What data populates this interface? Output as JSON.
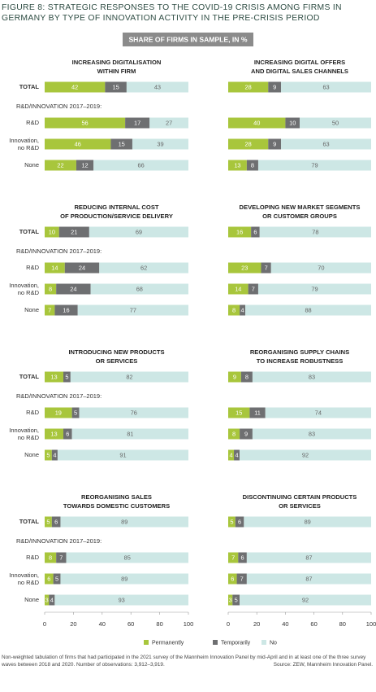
{
  "title": [
    "FIGURE 8: STRATEGIC RESPONSES TO THE COVID-19 CRISIS AMONG FIRMS IN",
    "GERMANY BY TYPE OF INNOVATION ACTIVITY IN THE PRE-CRISIS PERIOD"
  ],
  "subtitle": "SHARE OF FIRMS IN SAMPLE, IN %",
  "categories": [
    "TOTAL",
    "R&D",
    "Innovation, no R&D",
    "None"
  ],
  "group_label": "R&D/INNOVATION 2017–2019:",
  "legend": [
    {
      "name": "Permanently",
      "color": "#a8c63c"
    },
    {
      "name": "Temporarily",
      "color": "#6e6f71"
    },
    {
      "name": "No",
      "color": "#cde7e5"
    }
  ],
  "xlim": [
    0,
    100
  ],
  "xticks": [
    0,
    20,
    40,
    60,
    80,
    100
  ],
  "footnote": "Non-weighted tabulation of firms that had participated in the 2021 survey of the Mannheim Innovation Panel by mid-April and in at least one of the three survey waves between 2018 and 2020. Number of observations: 3,912–3,919.",
  "source": "Source: ZEW, Mannheim Innovation Panel.",
  "chart_data": [
    {
      "type": "bar",
      "title": [
        "INCREASING DIGITALISATION",
        "WITHIN FIRM"
      ],
      "series": [
        {
          "values": [
            42,
            56,
            46,
            22
          ]
        },
        {
          "values": [
            15,
            17,
            15,
            12
          ]
        },
        {
          "values": [
            43,
            27,
            39,
            66
          ]
        }
      ]
    },
    {
      "type": "bar",
      "title": [
        "INCREASING DIGITAL OFFERS",
        "AND DIGITAL SALES CHANNELS"
      ],
      "series": [
        {
          "values": [
            28,
            40,
            28,
            13
          ]
        },
        {
          "values": [
            9,
            10,
            9,
            8
          ]
        },
        {
          "values": [
            63,
            50,
            63,
            79
          ]
        }
      ]
    },
    {
      "type": "bar",
      "title": [
        "REDUCING INTERNAL COST",
        "OF PRODUCTION/SERVICE DELIVERY"
      ],
      "series": [
        {
          "values": [
            10,
            14,
            8,
            7
          ]
        },
        {
          "values": [
            21,
            24,
            24,
            16
          ]
        },
        {
          "values": [
            69,
            62,
            68,
            77
          ]
        }
      ]
    },
    {
      "type": "bar",
      "title": [
        "DEVELOPING NEW MARKET SEGMENTS",
        "OR CUSTOMER GROUPS"
      ],
      "series": [
        {
          "values": [
            16,
            23,
            14,
            8
          ]
        },
        {
          "values": [
            6,
            7,
            7,
            4
          ]
        },
        {
          "values": [
            78,
            70,
            79,
            88
          ]
        }
      ]
    },
    {
      "type": "bar",
      "title": [
        "INTRODUCING NEW PRODUCTS",
        "OR SERVICES"
      ],
      "series": [
        {
          "values": [
            13,
            19,
            13,
            5
          ]
        },
        {
          "values": [
            5,
            5,
            6,
            4
          ]
        },
        {
          "values": [
            82,
            76,
            81,
            91
          ]
        }
      ]
    },
    {
      "type": "bar",
      "title": [
        "REORGANISING SUPPLY CHAINS",
        "TO INCREASE ROBUSTNESS"
      ],
      "series": [
        {
          "values": [
            9,
            15,
            8,
            4
          ]
        },
        {
          "values": [
            8,
            11,
            9,
            4
          ]
        },
        {
          "values": [
            83,
            74,
            83,
            92
          ]
        }
      ]
    },
    {
      "type": "bar",
      "title": [
        "REORGANISING SALES",
        "TOWARDS DOMESTIC CUSTOMERS"
      ],
      "series": [
        {
          "values": [
            5,
            8,
            6,
            3
          ]
        },
        {
          "values": [
            6,
            7,
            5,
            4
          ]
        },
        {
          "values": [
            89,
            85,
            89,
            93
          ]
        }
      ]
    },
    {
      "type": "bar",
      "title": [
        "DISCONTINUING CERTAIN PRODUCTS",
        "OR SERVICES"
      ],
      "series": [
        {
          "values": [
            5,
            7,
            6,
            3
          ]
        },
        {
          "values": [
            6,
            6,
            7,
            5
          ]
        },
        {
          "values": [
            89,
            87,
            87,
            92
          ]
        }
      ]
    }
  ]
}
